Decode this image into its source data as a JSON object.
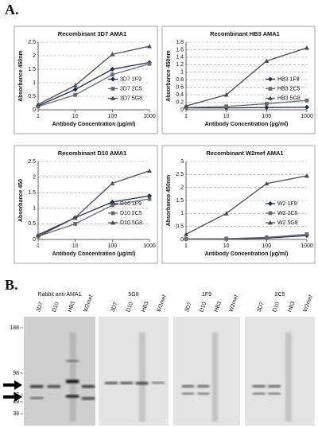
{
  "panel_a_label": "A.",
  "panel_b_label": "B.",
  "chart_data": [
    {
      "type": "line",
      "title": "Recombinant 3D7 AMA1",
      "ylabel": "Absorbance 450nm",
      "xlabel": "Antibody Concentration (µg/ml)",
      "x": [
        1,
        10,
        100,
        1000
      ],
      "xlim": [
        1,
        1000
      ],
      "xticks": [
        1,
        10,
        100,
        1000
      ],
      "xscale": "log",
      "ylim": [
        0,
        2.5
      ],
      "yticks": [
        0,
        0.5,
        1,
        1.5,
        2,
        2.5
      ],
      "grid": true,
      "legend": "right",
      "series": [
        {
          "name": "3D7 1F9",
          "color": "#1f2a55",
          "marker": "diamond",
          "values": [
            0.15,
            0.75,
            1.5,
            1.75
          ]
        },
        {
          "name": "3D7 2C5",
          "color": "#6a6a6a",
          "marker": "square",
          "values": [
            0.12,
            0.55,
            1.3,
            1.7
          ]
        },
        {
          "name": "3D7 5G8",
          "color": "#4a4a4a",
          "marker": "triangle",
          "values": [
            0.2,
            0.9,
            2.05,
            2.35
          ]
        }
      ]
    },
    {
      "type": "line",
      "title": "Recombinant HB3 AMA1",
      "ylabel": "Absorbance 450nm",
      "xlabel": "Antibody Concentration (µg/ml)",
      "x": [
        1,
        10,
        100,
        1000
      ],
      "xlim": [
        1,
        1000
      ],
      "xticks": [
        1,
        10,
        100,
        1000
      ],
      "xscale": "log",
      "ylim": [
        0,
        1.8
      ],
      "yticks": [
        0,
        0.2,
        0.4,
        0.6,
        0.8,
        1,
        1.2,
        1.4,
        1.6,
        1.8
      ],
      "grid": true,
      "legend": "right",
      "series": [
        {
          "name": "HB3 1F9",
          "color": "#1f2a55",
          "marker": "diamond",
          "values": [
            0.05,
            0.05,
            0.06,
            0.07
          ]
        },
        {
          "name": "HB3 2C5",
          "color": "#6a6a6a",
          "marker": "square",
          "values": [
            0.06,
            0.09,
            0.16,
            0.25
          ]
        },
        {
          "name": "HB3 5G8",
          "color": "#4a4a4a",
          "marker": "triangle",
          "values": [
            0.1,
            0.4,
            1.3,
            1.65
          ]
        }
      ]
    },
    {
      "type": "line",
      "title": "Recombinant D10 AMA1",
      "ylabel": "Absorbance 450",
      "xlabel": "Antibody Concentration (µg/ml)",
      "x": [
        1,
        10,
        100,
        1000
      ],
      "xlim": [
        1,
        1000
      ],
      "xticks": [
        1,
        10,
        100,
        1000
      ],
      "xscale": "log",
      "ylim": [
        0,
        2.5
      ],
      "yticks": [
        0,
        0.5,
        1,
        1.5,
        2,
        2.5
      ],
      "grid": true,
      "legend": "right",
      "series": [
        {
          "name": "D10 1F9",
          "color": "#1f2a55",
          "marker": "diamond",
          "values": [
            0.1,
            0.7,
            1.2,
            1.4
          ]
        },
        {
          "name": "D10 2C5",
          "color": "#6a6a6a",
          "marker": "square",
          "values": [
            0.1,
            0.5,
            1.1,
            1.3
          ]
        },
        {
          "name": "D10 5G8",
          "color": "#4a4a4a",
          "marker": "triangle",
          "values": [
            0.15,
            0.7,
            1.8,
            2.2
          ]
        }
      ]
    },
    {
      "type": "line",
      "title": "Recombinant W2mef AMA1",
      "ylabel": "Absorbance 450nm",
      "xlabel": "Antibody Concentration (µg/ml)",
      "x": [
        1,
        10,
        100,
        1000
      ],
      "xlim": [
        1,
        1000
      ],
      "xticks": [
        1,
        10,
        100,
        1000
      ],
      "xscale": "log",
      "ylim": [
        0,
        3
      ],
      "yticks": [
        0,
        0.5,
        1,
        1.5,
        2,
        2.5,
        3
      ],
      "grid": true,
      "legend": "right",
      "series": [
        {
          "name": "W2 1F9",
          "color": "#1f2a55",
          "marker": "diamond",
          "values": [
            0.02,
            0.02,
            0.05,
            0.15
          ]
        },
        {
          "name": "W2 2C5",
          "color": "#6a6a6a",
          "marker": "square",
          "values": [
            0.02,
            0.03,
            0.08,
            0.2
          ]
        },
        {
          "name": "W2 5G8",
          "color": "#4a4a4a",
          "marker": "triangle",
          "values": [
            0.2,
            1.0,
            2.15,
            2.45
          ]
        }
      ]
    }
  ],
  "blots": {
    "panels": [
      {
        "title": "Rabbit anti-AMA1",
        "lanes": [
          "3D7",
          "D10",
          "HB3",
          "W2mef"
        ]
      },
      {
        "title": "5G8",
        "lanes": [
          "3D7",
          "D10",
          "HB3",
          "W2mef"
        ]
      },
      {
        "title": "1F9",
        "lanes": [
          "3D7",
          "D10",
          "HB3",
          "W2mef"
        ]
      },
      {
        "title": "2C5",
        "lanes": [
          "3D7",
          "D10",
          "HB3",
          "W2mef"
        ]
      }
    ],
    "markers": [
      188,
      98,
      62,
      49,
      38
    ]
  }
}
